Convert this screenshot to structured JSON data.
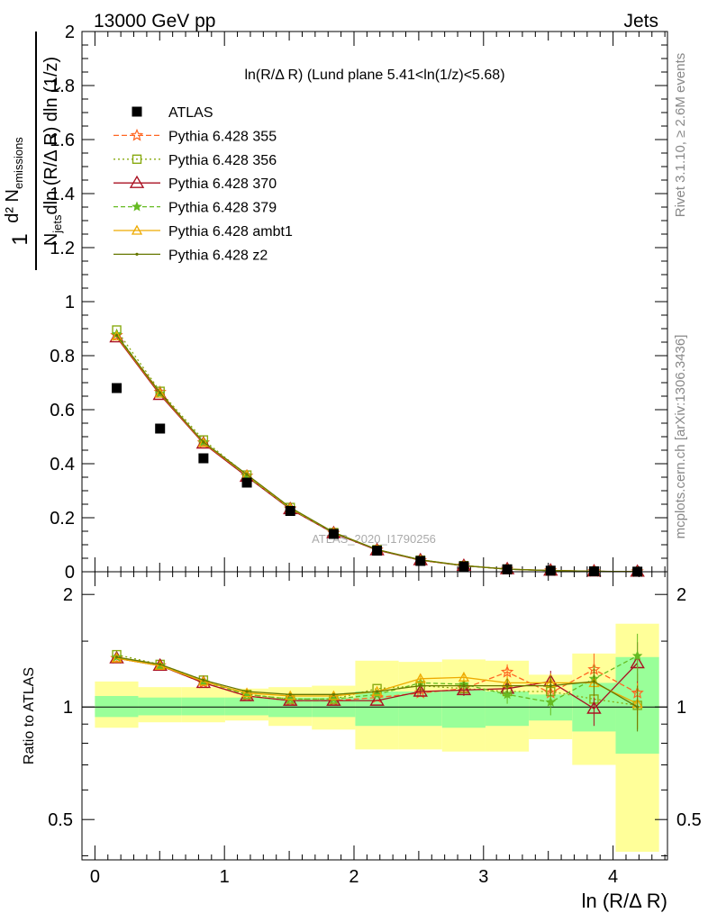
{
  "header": {
    "left": "13000 GeV pp",
    "right": "Jets"
  },
  "side_labels": {
    "rivet": "Rivet 3.1.10, ≥ 2.6M events",
    "mcplots": "mcplots.cern.ch [arXiv:1306.3436]"
  },
  "watermark": "ATLAS_2020_I1790256",
  "plot_title": "ln(R/Δ R) (Lund plane 5.41<ln(1/z)<5.68)",
  "x_axis_label": "ln (R/Δ R)",
  "ratio_axis_label": "Ratio to ATLAS",
  "main_ylabel_parts": {
    "one": "1",
    "njets": "N",
    "njets_sub": "jets",
    "denom_rest": "dln (R/Δ R) dln (1/z)",
    "numer": "d² N",
    "numer_sub": "emissions"
  },
  "chart_data": {
    "type": "line",
    "x": [
      0.168,
      0.503,
      0.838,
      1.173,
      1.508,
      1.843,
      2.178,
      2.513,
      2.848,
      3.183,
      3.518,
      3.853,
      4.188
    ],
    "xlim": [
      -0.1,
      4.42
    ],
    "xticks": [
      0,
      1,
      2,
      3,
      4
    ],
    "main": {
      "ylim": [
        0,
        2
      ],
      "yticks": [
        "0",
        "0.2",
        "0.4",
        "0.6",
        "0.8",
        "1",
        "1.2",
        "1.4",
        "1.6",
        "1.8",
        "2"
      ],
      "ytick_values": [
        0,
        0.2,
        0.4,
        0.6,
        0.8,
        1.0,
        1.2,
        1.4,
        1.6,
        1.8,
        2.0
      ]
    },
    "ratio": {
      "ylim": [
        0.39,
        2.3
      ],
      "log": true,
      "yticks": [
        "0.5",
        "1",
        "2"
      ],
      "ytick_values": [
        0.5,
        1,
        2
      ],
      "bands": [
        {
          "x0": 0.0,
          "x1": 0.335,
          "stat_lo": 0.94,
          "stat_hi": 1.07,
          "tot_lo": 0.88,
          "tot_hi": 1.17
        },
        {
          "x0": 0.335,
          "x1": 0.67,
          "stat_lo": 0.95,
          "stat_hi": 1.06,
          "tot_lo": 0.91,
          "tot_hi": 1.13
        },
        {
          "x0": 0.67,
          "x1": 1.005,
          "stat_lo": 0.95,
          "stat_hi": 1.06,
          "tot_lo": 0.91,
          "tot_hi": 1.13
        },
        {
          "x0": 1.005,
          "x1": 1.34,
          "stat_lo": 0.95,
          "stat_hi": 1.06,
          "tot_lo": 0.92,
          "tot_hi": 1.12
        },
        {
          "x0": 1.34,
          "x1": 1.675,
          "stat_lo": 0.94,
          "stat_hi": 1.06,
          "tot_lo": 0.89,
          "tot_hi": 1.13
        },
        {
          "x0": 1.675,
          "x1": 2.01,
          "stat_lo": 0.94,
          "stat_hi": 1.06,
          "tot_lo": 0.87,
          "tot_hi": 1.14
        },
        {
          "x0": 2.01,
          "x1": 2.345,
          "stat_lo": 0.89,
          "stat_hi": 1.1,
          "tot_lo": 0.77,
          "tot_hi": 1.33
        },
        {
          "x0": 2.345,
          "x1": 2.68,
          "stat_lo": 0.89,
          "stat_hi": 1.1,
          "tot_lo": 0.77,
          "tot_hi": 1.32
        },
        {
          "x0": 2.68,
          "x1": 3.015,
          "stat_lo": 0.88,
          "stat_hi": 1.11,
          "tot_lo": 0.76,
          "tot_hi": 1.34
        },
        {
          "x0": 3.015,
          "x1": 3.35,
          "stat_lo": 0.89,
          "stat_hi": 1.1,
          "tot_lo": 0.76,
          "tot_hi": 1.33
        },
        {
          "x0": 3.35,
          "x1": 3.685,
          "stat_lo": 0.92,
          "stat_hi": 1.08,
          "tot_lo": 0.82,
          "tot_hi": 1.22
        },
        {
          "x0": 3.685,
          "x1": 4.02,
          "stat_lo": 0.86,
          "stat_hi": 1.16,
          "tot_lo": 0.7,
          "tot_hi": 1.39
        },
        {
          "x0": 4.02,
          "x1": 4.355,
          "stat_lo": 0.75,
          "stat_hi": 1.36,
          "tot_lo": 0.41,
          "tot_hi": 1.67
        }
      ],
      "band_colors": {
        "stat": "#99ff99",
        "total": "#ffff99"
      }
    },
    "atlas": {
      "name": "ATLAS",
      "color": "#000000",
      "values": [
        0.68,
        0.53,
        0.42,
        0.33,
        0.225,
        0.14,
        0.078,
        0.04,
        0.02,
        0.009,
        0.004,
        0.0015,
        0.0004
      ]
    },
    "series": [
      {
        "name": "Pythia 6.428 355",
        "color": "#ff6622",
        "dash": "6,3",
        "marker": "star-open",
        "values": [
          0.875,
          0.665,
          0.478,
          0.355,
          0.233,
          0.143,
          0.081,
          0.042,
          0.0225,
          0.0095,
          0.0044,
          0.0016,
          0.00042
        ],
        "ratio": [
          1.35,
          1.29,
          1.16,
          1.07,
          1.04,
          1.04,
          1.06,
          1.09,
          1.12,
          1.24,
          1.09,
          1.26,
          1.09
        ],
        "ratio_err": [
          0.0,
          0.0,
          0.0,
          0.0,
          0.0,
          0.0,
          0.0,
          0.02,
          0.04,
          0.06,
          0.08,
          0.13,
          0.14
        ]
      },
      {
        "name": "Pythia 6.428 356",
        "color": "#88aa11",
        "dash": "2,3",
        "marker": "square-open",
        "values": [
          0.895,
          0.668,
          0.488,
          0.358,
          0.238,
          0.145,
          0.082,
          0.043,
          0.0227,
          0.0098,
          0.0044,
          0.0016,
          0.0004
        ],
        "ratio": [
          1.38,
          1.3,
          1.18,
          1.08,
          1.05,
          1.05,
          1.12,
          1.14,
          1.12,
          1.1,
          1.1,
          1.05,
          1.01
        ],
        "ratio_err": [
          0.0,
          0.0,
          0.0,
          0.0,
          0.0,
          0.0,
          0.0,
          0.02,
          0.03,
          0.05,
          0.07,
          0.1,
          0.14
        ]
      },
      {
        "name": "Pythia 6.428 370",
        "color": "#aa1122",
        "dash": "",
        "marker": "triangle-open-large",
        "values": [
          0.868,
          0.655,
          0.475,
          0.352,
          0.232,
          0.143,
          0.08,
          0.043,
          0.0222,
          0.0098,
          0.0045,
          0.0015,
          0.00052
        ],
        "ratio": [
          1.35,
          1.29,
          1.16,
          1.07,
          1.04,
          1.04,
          1.04,
          1.1,
          1.11,
          1.12,
          1.17,
          0.99,
          1.31
        ],
        "ratio_err": [
          0.0,
          0.0,
          0.0,
          0.0,
          0.0,
          0.0,
          0.0,
          0.02,
          0.04,
          0.06,
          0.08,
          0.1,
          0.18
        ]
      },
      {
        "name": "Pythia 6.428 379",
        "color": "#66bb22",
        "dash": "5,3",
        "marker": "star-filled",
        "values": [
          0.88,
          0.66,
          0.48,
          0.355,
          0.234,
          0.144,
          0.082,
          0.044,
          0.0228,
          0.0098,
          0.0041,
          0.0018,
          0.00055
        ],
        "ratio": [
          1.36,
          1.29,
          1.17,
          1.08,
          1.05,
          1.05,
          1.08,
          1.16,
          1.15,
          1.08,
          1.03,
          1.19,
          1.37
        ],
        "ratio_err": [
          0.0,
          0.0,
          0.0,
          0.0,
          0.0,
          0.0,
          0.0,
          0.02,
          0.04,
          0.06,
          0.08,
          0.1,
          0.2
        ]
      },
      {
        "name": "Pythia 6.428 ambt1",
        "color": "#eeaa00",
        "dash": "",
        "marker": "triangle-open-small",
        "values": [
          0.872,
          0.66,
          0.478,
          0.358,
          0.236,
          0.146,
          0.082,
          0.044,
          0.023,
          0.0098,
          0.0045,
          0.0017,
          0.0004
        ],
        "ratio": [
          1.35,
          1.29,
          1.17,
          1.09,
          1.07,
          1.07,
          1.1,
          1.19,
          1.2,
          1.16,
          1.16,
          1.16,
          1.02
        ],
        "ratio_err": [
          0.0,
          0.0,
          0.0,
          0.0,
          0.0,
          0.0,
          0.0,
          0.02,
          0.04,
          0.05,
          0.07,
          0.1,
          0.14
        ]
      },
      {
        "name": "Pythia 6.428 z2",
        "color": "#667700",
        "dash": "",
        "marker": "dot",
        "values": [
          0.875,
          0.662,
          0.48,
          0.36,
          0.238,
          0.146,
          0.082,
          0.044,
          0.0228,
          0.0097,
          0.0045,
          0.0017,
          0.0004
        ],
        "ratio": [
          1.36,
          1.3,
          1.18,
          1.1,
          1.08,
          1.08,
          1.1,
          1.14,
          1.14,
          1.14,
          1.14,
          1.17,
          1.0
        ],
        "ratio_err": [
          0.0,
          0.0,
          0.0,
          0.0,
          0.0,
          0.0,
          0.0,
          0.02,
          0.03,
          0.05,
          0.07,
          0.1,
          0.14
        ]
      }
    ]
  }
}
